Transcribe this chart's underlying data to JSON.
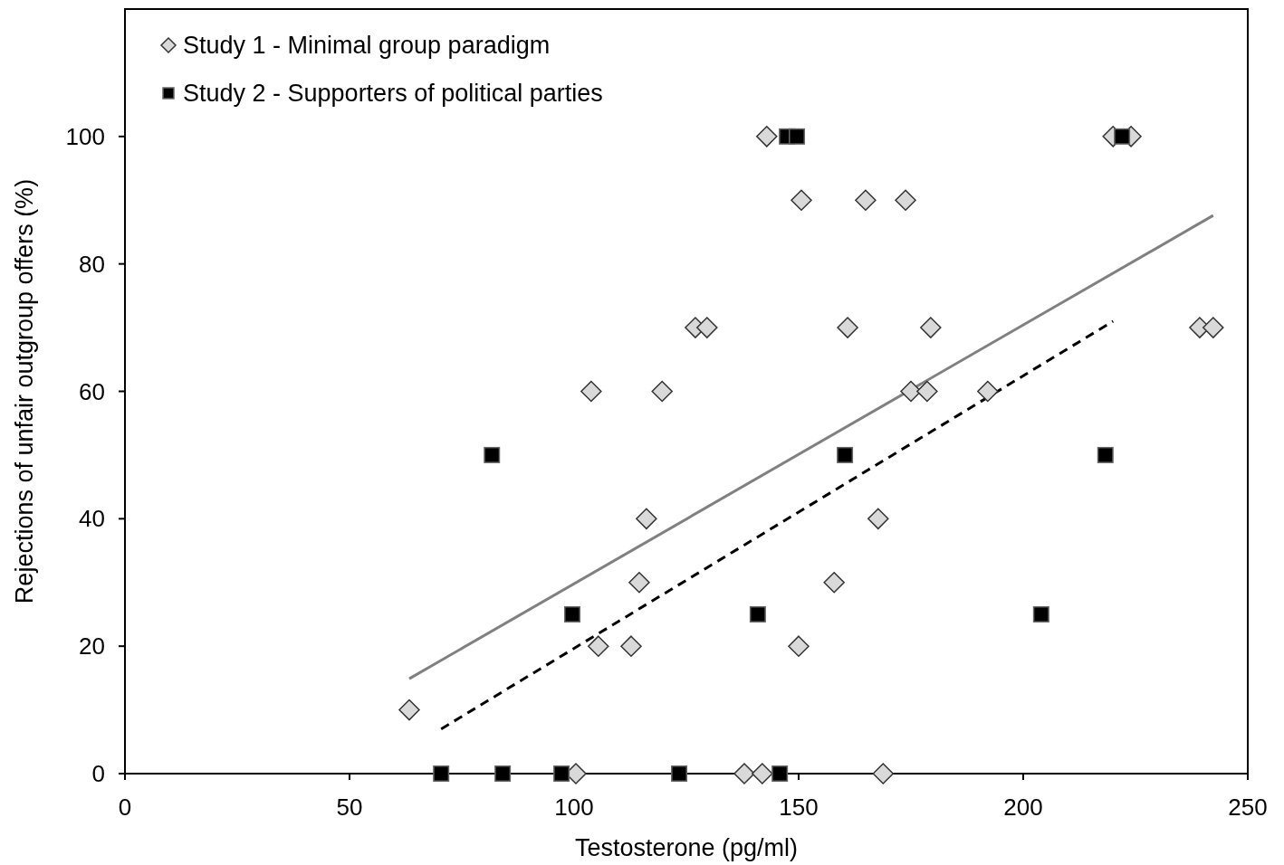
{
  "chart_data": {
    "type": "scatter",
    "xlabel": "Testosterone (pg/ml)",
    "ylabel": "Rejections of unfair outgroup offers (%)",
    "xlim": [
      0,
      250
    ],
    "xticks": [
      0,
      50,
      100,
      150,
      200,
      250
    ],
    "ylim": [
      0,
      120
    ],
    "yticks": [
      0,
      20,
      40,
      60,
      80,
      100
    ],
    "grid": false,
    "legend": "top left",
    "series": [
      {
        "name": "Study 1 - Minimal group paradigm",
        "marker": "diamond",
        "color": "#d9d9d9",
        "x": [
          63.3,
          100.4,
          103.8,
          105.4,
          112.7,
          114.5,
          116.1,
          119.6,
          127,
          129.6,
          137.9,
          141.9,
          142.9,
          150,
          150.6,
          157.9,
          160.9,
          164.9,
          167.7,
          168.8,
          173.8,
          175,
          178.6,
          179.4,
          192.1,
          220,
          224,
          239.3,
          242.3
        ],
        "values": [
          10,
          0,
          60,
          20,
          20,
          30,
          40,
          60,
          70,
          70,
          0,
          0,
          100,
          20,
          90,
          30,
          70,
          90,
          40,
          0,
          90,
          60,
          60,
          70,
          60,
          100,
          100,
          70,
          70
        ]
      },
      {
        "name": "Study 2 - Supporters of political parties",
        "marker": "square",
        "color": "#000000",
        "x": [
          70.4,
          81.7,
          84.1,
          97.2,
          99.6,
          123.4,
          140.9,
          145.8,
          147.4,
          149.6,
          160.3,
          204,
          218.3,
          222
        ],
        "values": [
          0,
          50,
          0,
          0,
          25,
          0,
          25,
          0,
          100,
          100,
          50,
          25,
          50,
          100
        ]
      },
      {
        "type": "line",
        "color": "#808080",
        "line_style": "solid",
        "x": [
          63.3,
          242.3
        ],
        "values": [
          14.9,
          87.6
        ]
      },
      {
        "type": "line",
        "color": "#000000",
        "line_style": "dashed",
        "x": [
          70.4,
          220
        ],
        "values": [
          7.0,
          71.0
        ]
      }
    ]
  }
}
